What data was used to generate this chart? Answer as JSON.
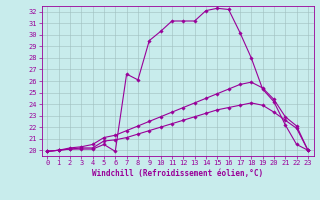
{
  "title": "",
  "xlabel": "Windchill (Refroidissement éolien,°C)",
  "xlim": [
    -0.5,
    23.5
  ],
  "ylim": [
    19.5,
    32.5
  ],
  "xticks": [
    0,
    1,
    2,
    3,
    4,
    5,
    6,
    7,
    8,
    9,
    10,
    11,
    12,
    13,
    14,
    15,
    16,
    17,
    18,
    19,
    20,
    21,
    22,
    23
  ],
  "yticks": [
    20,
    21,
    22,
    23,
    24,
    25,
    26,
    27,
    28,
    29,
    30,
    31,
    32
  ],
  "bg_color": "#c8ecec",
  "line_color": "#990099",
  "grid_color": "#9fbfbf",
  "line1_x": [
    0,
    1,
    2,
    3,
    4,
    5,
    6,
    7,
    8,
    9,
    10,
    11,
    12,
    13,
    14,
    15,
    16,
    17,
    18,
    19,
    20,
    21,
    22,
    23
  ],
  "line1_y": [
    19.9,
    20.0,
    20.1,
    20.1,
    20.1,
    20.5,
    19.9,
    26.6,
    26.1,
    29.5,
    30.3,
    31.2,
    31.2,
    31.2,
    32.1,
    32.3,
    32.2,
    30.2,
    28.0,
    25.3,
    24.2,
    22.2,
    20.5,
    20.0
  ],
  "line2_x": [
    0,
    1,
    2,
    3,
    4,
    5,
    6,
    7,
    8,
    9,
    10,
    11,
    12,
    13,
    14,
    15,
    16,
    17,
    18,
    19,
    20,
    21,
    22,
    23
  ],
  "line2_y": [
    19.9,
    20.0,
    20.2,
    20.3,
    20.5,
    21.1,
    21.3,
    21.7,
    22.1,
    22.5,
    22.9,
    23.3,
    23.7,
    24.1,
    24.5,
    24.9,
    25.3,
    25.7,
    25.9,
    25.4,
    24.4,
    22.9,
    22.1,
    20.0
  ],
  "line3_x": [
    0,
    1,
    2,
    3,
    4,
    5,
    6,
    7,
    8,
    9,
    10,
    11,
    12,
    13,
    14,
    15,
    16,
    17,
    18,
    19,
    20,
    21,
    22,
    23
  ],
  "line3_y": [
    19.9,
    20.0,
    20.1,
    20.2,
    20.2,
    20.8,
    20.9,
    21.1,
    21.4,
    21.7,
    22.0,
    22.3,
    22.6,
    22.9,
    23.2,
    23.5,
    23.7,
    23.9,
    24.1,
    23.9,
    23.3,
    22.6,
    21.9,
    20.0
  ],
  "markersize": 1.8,
  "linewidth": 0.8,
  "xlabel_fontsize": 5.5,
  "tick_fontsize": 5.0
}
